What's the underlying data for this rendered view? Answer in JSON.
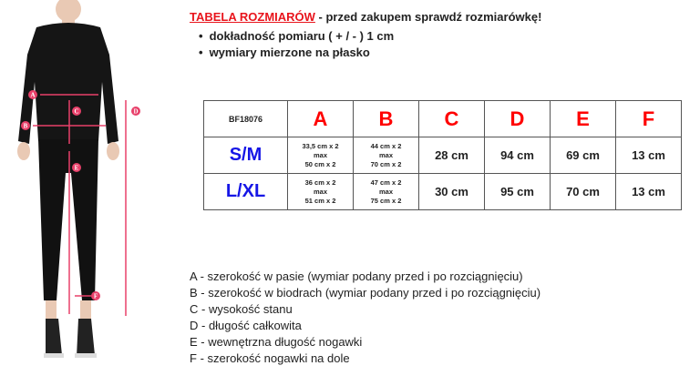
{
  "header": {
    "title": "TABELA ROZMIARÓW",
    "subtitle": " - przed zakupem sprawdź rozmiarówkę!",
    "bullets": [
      "dokładność pomiaru ( + / - ) 1 cm",
      "wymiary mierzone na płasko"
    ]
  },
  "colors": {
    "accent": "#e8141c",
    "size_label": "#1616e6",
    "measure_marker": "#e8406a"
  },
  "figure": {
    "markers": [
      "A",
      "B",
      "C",
      "D",
      "E",
      "F"
    ]
  },
  "table": {
    "code": "BF18076",
    "columns": [
      "A",
      "B",
      "C",
      "D",
      "E",
      "F"
    ],
    "rows": [
      {
        "size": "S/M",
        "a": [
          "33,5 cm x 2",
          "max",
          "50 cm x 2"
        ],
        "b": [
          "44 cm x 2",
          "max",
          "70 cm x 2"
        ],
        "c": "28 cm",
        "d": "94 cm",
        "e": "69 cm",
        "f": "13 cm"
      },
      {
        "size": "L/XL",
        "a": [
          "36 cm x 2",
          "max",
          "51 cm x 2"
        ],
        "b": [
          "47 cm x 2",
          "max",
          "75 cm x 2"
        ],
        "c": "30 cm",
        "d": "95 cm",
        "e": "70 cm",
        "f": "13 cm"
      }
    ]
  },
  "legend": [
    {
      "key": "A",
      "text": " - szerokość w pasie (wymiar podany przed i po rozciągnięciu)"
    },
    {
      "key": "B",
      "text": " - szerokość w biodrach (wymiar podany przed i po rozciągnięciu)"
    },
    {
      "key": "C",
      "text": " - wysokość stanu"
    },
    {
      "key": "D",
      "text": " - długość całkowita"
    },
    {
      "key": "E",
      "text": " - wewnętrzna długość nogawki"
    },
    {
      "key": "F",
      "text": " - szerokość nogawki na dole"
    }
  ]
}
